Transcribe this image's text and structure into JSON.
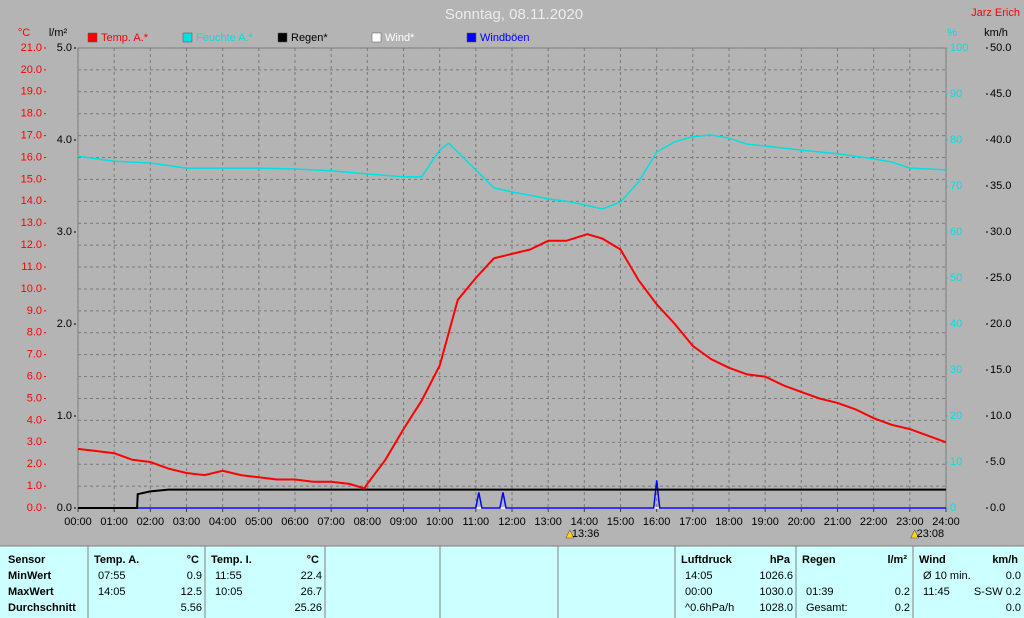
{
  "chart_data": {
    "type": "line",
    "title": "Sonntag, 08.11.2020",
    "author": "Jarz Erich",
    "ylabel": "°C",
    "y2label": "l/m²",
    "y3label": "%",
    "y4label": "km/h",
    "xticks": [
      "00:00",
      "01:00",
      "02:00",
      "03:00",
      "04:00",
      "05:00",
      "06:00",
      "07:00",
      "08:00",
      "09:00",
      "10:00",
      "11:00",
      "12:00",
      "13:00",
      "14:00",
      "15:00",
      "16:00",
      "17:00",
      "18:00",
      "19:00",
      "20:00",
      "21:00",
      "22:00",
      "23:00",
      "24:00"
    ],
    "annotations": [
      {
        "x": "13:36",
        "label": "13:36"
      },
      {
        "x": "23:08",
        "label": "23:08"
      }
    ],
    "ylim": [
      0,
      21
    ],
    "yticks": [
      {
        "value": 0,
        "label": "0.0"
      },
      {
        "value": 1,
        "label": "1.0"
      },
      {
        "value": 2,
        "label": "2.0"
      },
      {
        "value": 3,
        "label": "3.0"
      },
      {
        "value": 4,
        "label": "4.0"
      },
      {
        "value": 5,
        "label": "5.0"
      },
      {
        "value": 6,
        "label": "6.0"
      },
      {
        "value": 7,
        "label": "7.0"
      },
      {
        "value": 8,
        "label": "8.0"
      },
      {
        "value": 9,
        "label": "9.0"
      },
      {
        "value": 10,
        "label": "10.0"
      },
      {
        "value": 11,
        "label": "11.0"
      },
      {
        "value": 12,
        "label": "12.0"
      },
      {
        "value": 13,
        "label": "13.0"
      },
      {
        "value": 14,
        "label": "14.0"
      },
      {
        "value": 15,
        "label": "15.0"
      },
      {
        "value": 16,
        "label": "16.0"
      },
      {
        "value": 17,
        "label": "17.0"
      },
      {
        "value": 18,
        "label": "18.0"
      },
      {
        "value": 19,
        "label": "19.0"
      },
      {
        "value": 20,
        "label": "20.0"
      },
      {
        "value": 21,
        "label": "21.0"
      }
    ],
    "y2lim": [
      0,
      5
    ],
    "y2ticks": [
      {
        "value": 0,
        "label": "0.0"
      },
      {
        "value": 1,
        "label": "1.0"
      },
      {
        "value": 2,
        "label": "2.0"
      },
      {
        "value": 3,
        "label": "3.0"
      },
      {
        "value": 4,
        "label": "4.0"
      },
      {
        "value": 5,
        "label": "5.0"
      }
    ],
    "y3lim": [
      0,
      100
    ],
    "y3ticks": [
      0,
      10,
      20,
      30,
      40,
      50,
      60,
      70,
      80,
      90,
      100
    ],
    "y4lim": [
      0,
      50
    ],
    "y4ticks": [
      {
        "value": 0,
        "label": "0.0"
      },
      {
        "value": 5,
        "label": "5.0"
      },
      {
        "value": 10,
        "label": "10.0"
      },
      {
        "value": 15,
        "label": "15.0"
      },
      {
        "value": 20,
        "label": "20.0"
      },
      {
        "value": 25,
        "label": "25.0"
      },
      {
        "value": 30,
        "label": "30.0"
      },
      {
        "value": 35,
        "label": "35.0"
      },
      {
        "value": 40,
        "label": "40.0"
      },
      {
        "value": 45,
        "label": "45.0"
      },
      {
        "value": 50,
        "label": "50.0"
      }
    ],
    "grid": true,
    "series": [
      {
        "name": "Temp. A.*",
        "color": "#ff0000",
        "axis": "y",
        "x": [
          "00:00",
          "00:30",
          "01:00",
          "01:30",
          "02:00",
          "02:30",
          "03:00",
          "03:30",
          "04:00",
          "04:30",
          "05:00",
          "05:30",
          "06:00",
          "06:30",
          "07:00",
          "07:30",
          "07:55",
          "08:00",
          "08:30",
          "09:00",
          "09:30",
          "10:00",
          "10:30",
          "11:00",
          "11:30",
          "12:00",
          "12:30",
          "13:00",
          "13:30",
          "14:05",
          "14:30",
          "15:00",
          "15:30",
          "16:00",
          "16:30",
          "17:00",
          "17:30",
          "18:00",
          "18:30",
          "19:00",
          "19:30",
          "20:00",
          "20:30",
          "21:00",
          "21:30",
          "22:00",
          "22:30",
          "23:00",
          "23:30",
          "24:00"
        ],
        "values": [
          2.7,
          2.6,
          2.5,
          2.2,
          2.1,
          1.8,
          1.6,
          1.5,
          1.7,
          1.5,
          1.4,
          1.3,
          1.3,
          1.2,
          1.2,
          1.1,
          0.9,
          1.1,
          2.2,
          3.6,
          4.9,
          6.5,
          9.5,
          10.5,
          11.4,
          11.6,
          11.8,
          12.2,
          12.2,
          12.5,
          12.3,
          11.8,
          10.4,
          9.3,
          8.4,
          7.4,
          6.8,
          6.4,
          6.1,
          6.0,
          5.6,
          5.3,
          5.0,
          4.8,
          4.5,
          4.1,
          3.8,
          3.6,
          3.3,
          3.0
        ]
      },
      {
        "name": "Feuchte A.*",
        "color": "#00e0e0",
        "axis": "y3",
        "x": [
          "00:00",
          "01:00",
          "02:00",
          "03:00",
          "04:00",
          "05:00",
          "06:00",
          "07:00",
          "08:00",
          "09:00",
          "09:30",
          "10:00",
          "10:15",
          "10:30",
          "11:00",
          "11:30",
          "12:00",
          "12:30",
          "13:00",
          "13:30",
          "14:00",
          "14:30",
          "15:00",
          "15:30",
          "16:00",
          "16:30",
          "17:00",
          "17:30",
          "18:00",
          "18:30",
          "19:00",
          "20:00",
          "21:00",
          "22:00",
          "22:30",
          "23:00",
          "24:00"
        ],
        "values": [
          76.5,
          75.4,
          75,
          73.9,
          73.9,
          73.9,
          73.7,
          73.3,
          72.6,
          72,
          72,
          77.8,
          79.3,
          77.4,
          73.5,
          69.6,
          68.7,
          68,
          67.2,
          66.7,
          65.9,
          65,
          66.5,
          70.9,
          77.4,
          79.6,
          80.7,
          81.1,
          80.4,
          79.1,
          78.7,
          77.8,
          77,
          75.9,
          75.2,
          73.9,
          73.5
        ]
      },
      {
        "name": "Regen*",
        "color": "#000000",
        "axis": "y2",
        "x": [
          "00:00",
          "01:38",
          "01:39",
          "02:00",
          "02:30",
          "24:00"
        ],
        "values": [
          0,
          0,
          0.15,
          0.18,
          0.2,
          0.2
        ]
      },
      {
        "name": "Wind*",
        "color": "#ffffff",
        "axis": "y4",
        "x": [
          "00:00",
          "24:00"
        ],
        "values": [
          0,
          0
        ]
      },
      {
        "name": "Windböen",
        "color": "#0000ff",
        "axis": "y4",
        "x": [
          "00:00",
          "11:00",
          "11:05",
          "11:10",
          "11:40",
          "11:45",
          "11:50",
          "15:55",
          "16:00",
          "16:05",
          "24:00"
        ],
        "values": [
          0,
          0,
          1.7,
          0,
          0,
          1.7,
          0,
          0,
          3.0,
          0,
          0
        ]
      }
    ]
  },
  "table": {
    "row_header": "Sensor",
    "row_labels": [
      "MinWert",
      "MaxWert",
      "Durchschnitt"
    ],
    "groups": [
      {
        "name": "Temp. A.",
        "unit": "°C",
        "rows": [
          {
            "time": "07:55",
            "value": "0.9"
          },
          {
            "time": "14:05",
            "value": "12.5"
          },
          {
            "value": "5.56"
          }
        ]
      },
      {
        "name": "Temp. I.",
        "unit": "°C",
        "rows": [
          {
            "time": "11:55",
            "value": "22.4"
          },
          {
            "time": "10:05",
            "value": "26.7"
          },
          {
            "value": "25.26"
          }
        ]
      },
      {
        "name": "Luftdruck",
        "unit": "hPa",
        "rows": [
          {
            "time": "14:05",
            "value": "1026.6"
          },
          {
            "time": "00:00",
            "value": "1030.0"
          },
          {
            "time": "^0.6hPa/h",
            "value": "1028.0"
          }
        ]
      },
      {
        "name": "Regen",
        "unit": "l/m²",
        "rows": [
          null,
          {
            "time": "01:39",
            "value": "0.2"
          },
          {
            "time": "Gesamt:",
            "value": "0.2"
          }
        ]
      },
      {
        "name": "Wind",
        "unit": "km/h",
        "rows": [
          {
            "time": "Ø 10 min.",
            "value": "0.0"
          },
          {
            "time": "11:45",
            "value": "S-SW 0.2"
          },
          {
            "value": "0.0"
          }
        ]
      }
    ]
  }
}
